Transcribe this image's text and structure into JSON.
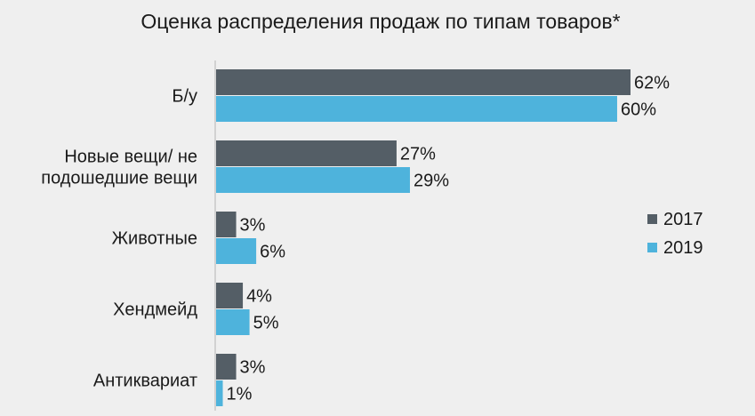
{
  "chart_data": {
    "type": "bar",
    "orientation": "horizontal",
    "title": "Оценка распределения продаж по типам товаров*",
    "categories": [
      [
        "Б/у"
      ],
      [
        "Новые вещи/ не",
        "подошедшие вещи"
      ],
      [
        "Животные"
      ],
      [
        "Хендмейд"
      ],
      [
        "Антиквариат"
      ]
    ],
    "series": [
      {
        "name": "2017",
        "color": "#545e66",
        "values": [
          62,
          27,
          3,
          4,
          3
        ],
        "labels": [
          "62%",
          "27%",
          "3%",
          "4%",
          "3%"
        ]
      },
      {
        "name": "2019",
        "color": "#4eb3dc",
        "values": [
          60,
          29,
          6,
          5,
          1
        ],
        "labels": [
          "60%",
          "29%",
          "6%",
          "5%",
          "1%"
        ]
      }
    ],
    "value_unit": "%",
    "xlim": [
      0,
      62
    ],
    "grid": false,
    "legend_position": "right"
  }
}
